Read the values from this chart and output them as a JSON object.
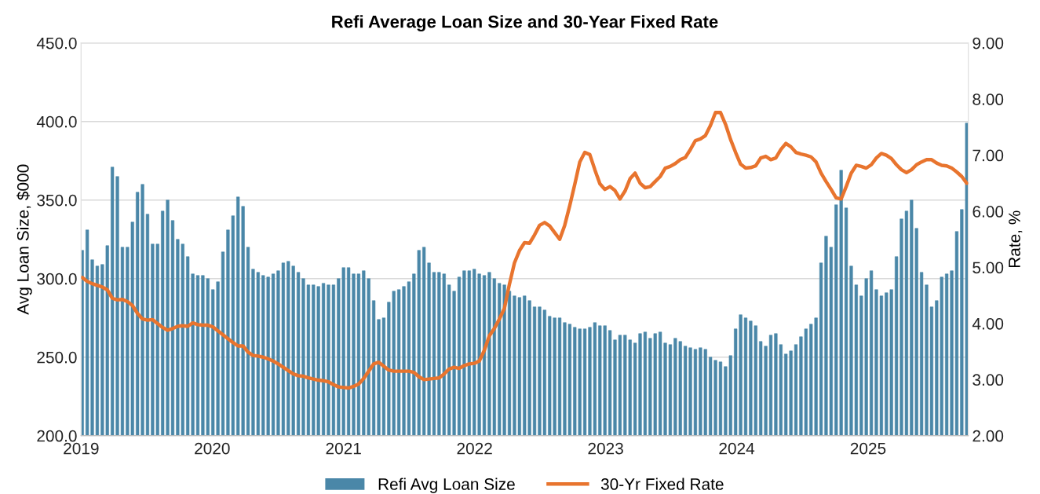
{
  "chart_data": {
    "type": "bar",
    "title": "Refi Average Loan Size and 30-Year Fixed Rate",
    "ylabel": "Avg Loan Size, $000",
    "y2label": "Rate, %",
    "x": [
      "2019-01-04",
      "2019-01-18",
      "2019-02-01",
      "2019-02-15",
      "2019-03-01",
      "2019-03-15",
      "2019-03-29",
      "2019-04-12",
      "2019-04-26",
      "2019-05-10",
      "2019-05-24",
      "2019-06-07",
      "2019-06-21",
      "2019-07-05",
      "2019-07-19",
      "2019-08-02",
      "2019-08-16",
      "2019-08-30",
      "2019-09-13",
      "2019-09-27",
      "2019-10-11",
      "2019-10-25",
      "2019-11-08",
      "2019-11-22",
      "2019-12-06",
      "2019-12-20",
      "2020-01-03",
      "2020-01-17",
      "2020-01-31",
      "2020-02-14",
      "2020-02-28",
      "2020-03-13",
      "2020-03-27",
      "2020-04-10",
      "2020-04-24",
      "2020-05-08",
      "2020-05-22",
      "2020-06-05",
      "2020-06-19",
      "2020-07-03",
      "2020-07-17",
      "2020-07-31",
      "2020-08-14",
      "2020-08-28",
      "2020-09-11",
      "2020-09-25",
      "2020-10-09",
      "2020-10-23",
      "2020-11-06",
      "2020-11-20",
      "2020-12-04",
      "2020-12-18",
      "2021-01-01",
      "2021-01-15",
      "2021-01-29",
      "2021-02-12",
      "2021-02-26",
      "2021-03-12",
      "2021-03-26",
      "2021-04-09",
      "2021-04-23",
      "2021-05-07",
      "2021-05-21",
      "2021-06-04",
      "2021-06-18",
      "2021-07-02",
      "2021-07-16",
      "2021-07-30",
      "2021-08-13",
      "2021-08-27",
      "2021-09-10",
      "2021-09-24",
      "2021-10-08",
      "2021-10-22",
      "2021-11-05",
      "2021-11-19",
      "2021-12-03",
      "2021-12-17",
      "2021-12-31",
      "2022-01-14",
      "2022-01-28",
      "2022-02-11",
      "2022-02-25",
      "2022-03-11",
      "2022-03-25",
      "2022-04-08",
      "2022-04-22",
      "2022-05-06",
      "2022-05-20",
      "2022-06-03",
      "2022-06-17",
      "2022-07-01",
      "2022-07-15",
      "2022-07-29",
      "2022-08-12",
      "2022-08-26",
      "2022-09-09",
      "2022-09-23",
      "2022-10-07",
      "2022-10-21",
      "2022-11-04",
      "2022-11-18",
      "2022-12-02",
      "2022-12-16",
      "2022-12-30",
      "2023-01-13",
      "2023-01-27",
      "2023-02-10",
      "2023-02-24",
      "2023-03-10",
      "2023-03-24",
      "2023-04-07",
      "2023-04-21",
      "2023-05-05",
      "2023-05-19",
      "2023-06-02",
      "2023-06-16",
      "2023-06-30",
      "2023-07-14",
      "2023-07-28",
      "2023-08-11",
      "2023-08-25",
      "2023-09-08",
      "2023-09-22",
      "2023-10-06",
      "2023-10-20",
      "2023-11-03",
      "2023-11-17",
      "2023-12-01",
      "2023-12-15",
      "2023-12-29",
      "2024-01-12",
      "2024-01-26",
      "2024-02-09",
      "2024-02-23",
      "2024-03-08",
      "2024-03-22",
      "2024-04-05",
      "2024-04-19",
      "2024-05-03",
      "2024-05-17",
      "2024-05-31",
      "2024-06-14",
      "2024-06-28",
      "2024-07-12",
      "2024-07-26",
      "2024-08-09",
      "2024-08-23",
      "2024-09-06",
      "2024-09-20",
      "2024-10-04",
      "2024-10-18",
      "2024-11-01",
      "2024-11-15",
      "2024-11-29",
      "2024-12-13",
      "2024-12-27",
      "2025-01-10",
      "2025-01-24",
      "2025-02-07",
      "2025-02-21",
      "2025-03-07",
      "2025-03-21",
      "2025-04-04",
      "2025-04-18",
      "2025-05-02",
      "2025-05-16",
      "2025-05-30",
      "2025-06-13",
      "2025-06-27",
      "2025-07-11",
      "2025-07-25",
      "2025-08-08",
      "2025-08-22",
      "2025-09-05",
      "2025-09-19",
      "2025-10-03"
    ],
    "series": [
      {
        "name": "Refi Avg Loan Size",
        "color": "#4a87a8",
        "values": [
          318,
          331,
          312,
          308,
          309,
          321,
          371,
          365,
          320,
          320,
          336,
          355,
          360,
          341,
          322,
          322,
          343,
          350,
          337,
          325,
          322,
          314,
          303,
          302,
          302,
          300,
          293,
          298,
          317,
          331,
          340,
          352,
          346,
          320,
          306,
          304,
          302,
          301,
          303,
          305,
          310,
          311,
          308,
          304,
          300,
          296,
          296,
          295,
          297,
          296,
          296,
          300,
          307,
          307,
          303,
          303,
          305,
          300,
          286,
          274,
          275,
          285,
          292,
          293,
          295,
          298,
          303,
          318,
          320,
          310,
          304,
          304,
          303,
          296,
          292,
          301,
          305,
          305,
          306,
          303,
          302,
          304,
          300,
          297,
          296,
          292,
          289,
          288,
          289,
          286,
          282,
          282,
          280,
          276,
          275,
          275,
          272,
          271,
          269,
          268,
          268,
          269,
          272,
          270,
          270,
          267,
          261,
          264,
          264,
          261,
          259,
          265,
          266,
          262,
          265,
          266,
          259,
          258,
          262,
          260,
          257,
          256,
          255,
          256,
          255,
          250,
          248,
          247,
          244,
          251,
          268,
          277,
          275,
          273,
          270,
          260,
          257,
          264,
          265,
          258,
          252,
          254,
          258,
          263,
          268,
          271,
          275,
          310,
          327,
          320,
          347,
          369,
          345,
          308,
          296,
          289,
          300,
          305,
          293,
          289,
          291,
          293,
          314,
          338,
          343,
          350,
          332,
          304,
          296,
          282,
          286,
          301,
          303,
          305,
          330,
          344,
          399
        ]
      },
      {
        "name": "30-Yr Fixed Rate",
        "type": "line",
        "axis": "y2",
        "color": "#e8742e",
        "values": [
          4.82,
          4.75,
          4.71,
          4.68,
          4.65,
          4.6,
          4.45,
          4.42,
          4.43,
          4.39,
          4.32,
          4.18,
          4.08,
          4.06,
          4.07,
          4.0,
          3.93,
          3.88,
          3.91,
          3.95,
          3.96,
          3.95,
          4.01,
          3.98,
          3.97,
          3.97,
          3.94,
          3.87,
          3.8,
          3.73,
          3.66,
          3.6,
          3.6,
          3.49,
          3.43,
          3.42,
          3.4,
          3.37,
          3.33,
          3.28,
          3.22,
          3.16,
          3.1,
          3.07,
          3.06,
          3.03,
          3.01,
          2.99,
          2.98,
          2.96,
          2.91,
          2.87,
          2.86,
          2.85,
          2.88,
          2.92,
          3.02,
          3.15,
          3.28,
          3.31,
          3.24,
          3.17,
          3.15,
          3.15,
          3.15,
          3.15,
          3.13,
          3.05,
          3.0,
          3.01,
          3.02,
          3.03,
          3.1,
          3.19,
          3.22,
          3.2,
          3.25,
          3.28,
          3.29,
          3.33,
          3.52,
          3.78,
          3.91,
          4.08,
          4.27,
          4.7,
          5.08,
          5.3,
          5.44,
          5.43,
          5.58,
          5.75,
          5.8,
          5.74,
          5.62,
          5.5,
          5.75,
          6.1,
          6.48,
          6.88,
          7.05,
          7.01,
          6.74,
          6.49,
          6.39,
          6.44,
          6.37,
          6.22,
          6.36,
          6.58,
          6.68,
          6.5,
          6.42,
          6.44,
          6.53,
          6.62,
          6.77,
          6.8,
          6.85,
          6.92,
          6.96,
          7.1,
          7.26,
          7.29,
          7.35,
          7.53,
          7.76,
          7.76,
          7.55,
          7.28,
          7.05,
          6.84,
          6.77,
          6.78,
          6.81,
          6.95,
          6.98,
          6.92,
          6.95,
          7.1,
          7.21,
          7.15,
          7.05,
          7.02,
          7.0,
          6.97,
          6.88,
          6.68,
          6.53,
          6.39,
          6.24,
          6.22,
          6.44,
          6.68,
          6.82,
          6.8,
          6.77,
          6.83,
          6.95,
          7.03,
          7.0,
          6.94,
          6.83,
          6.74,
          6.69,
          6.74,
          6.83,
          6.88,
          6.92,
          6.92,
          6.86,
          6.82,
          6.81,
          6.77,
          6.7,
          6.62,
          6.5
        ]
      }
    ],
    "xlim": [
      "2019-01-01",
      "2025-10-07"
    ],
    "xticks": [
      {
        "value": "2019-01-01",
        "label": "2019"
      },
      {
        "value": "2020-01-01",
        "label": "2020"
      },
      {
        "value": "2021-01-01",
        "label": "2021"
      },
      {
        "value": "2022-01-01",
        "label": "2022"
      },
      {
        "value": "2023-01-01",
        "label": "2023"
      },
      {
        "value": "2024-01-01",
        "label": "2024"
      },
      {
        "value": "2025-01-01",
        "label": "2025"
      }
    ],
    "ylim": [
      200,
      450
    ],
    "yticks": [
      {
        "value": 200,
        "label": "200.0"
      },
      {
        "value": 250,
        "label": "250.0"
      },
      {
        "value": 300,
        "label": "300.0"
      },
      {
        "value": 350,
        "label": "350.0"
      },
      {
        "value": 400,
        "label": "400.0"
      },
      {
        "value": 450,
        "label": "450.0"
      }
    ],
    "y2lim": [
      2,
      9
    ],
    "y2ticks": [
      {
        "value": 2,
        "label": "2.00"
      },
      {
        "value": 3,
        "label": "3.00"
      },
      {
        "value": 4,
        "label": "4.00"
      },
      {
        "value": 5,
        "label": "5.00"
      },
      {
        "value": 6,
        "label": "6.00"
      },
      {
        "value": 7,
        "label": "7.00"
      },
      {
        "value": 8,
        "label": "8.00"
      },
      {
        "value": 9,
        "label": "9.00"
      }
    ],
    "grid": "y",
    "legend": "bottom",
    "marker": "none",
    "line_style": "solid"
  }
}
